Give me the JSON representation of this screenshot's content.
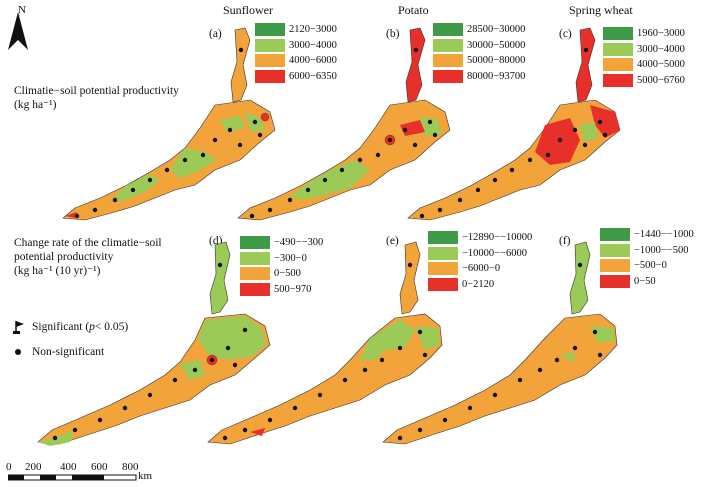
{
  "colors": {
    "dark_green": "#3f9a48",
    "light_green": "#9bca57",
    "orange": "#f2a33a",
    "red": "#e8302a"
  },
  "north_label": "N",
  "crops": [
    "Sunflower",
    "Potato",
    "Spring wheat"
  ],
  "rows": [
    {
      "title": [
        "Climatie−soil potential productivity",
        "(kg ha⁻¹)"
      ],
      "panels": [
        {
          "label": "(a)",
          "legend": [
            "2120−3000",
            "3000−4000",
            "4000−6000",
            "6000−6350"
          ]
        },
        {
          "label": "(b)",
          "legend": [
            "28500−30000",
            "30000−50000",
            "50000−80000",
            "80000−93700"
          ]
        },
        {
          "label": "(c)",
          "legend": [
            "1960−3000",
            "3000−4000",
            "4000−5000",
            "5000−6760"
          ]
        }
      ]
    },
    {
      "title": [
        "Change rate of the climatie−soil",
        "potential productivity",
        "(kg ha⁻¹ (10 yr)⁻¹)"
      ],
      "panels": [
        {
          "label": "(d)",
          "legend": [
            "−490−−300",
            "−300−0",
            "0−500",
            "500−970"
          ]
        },
        {
          "label": "(e)",
          "legend": [
            "−12890−−10000",
            "−10000−−6000",
            "−6000−0",
            "0−2120"
          ]
        },
        {
          "label": "(f)",
          "legend": [
            "−1440−−1000",
            "−1000−−500",
            "−500−0",
            "0−50"
          ]
        }
      ]
    }
  ],
  "key": {
    "significant_text": "Significant (",
    "significant_p": "p",
    "significant_rest": " < 0.05)",
    "nonsignificant": "Non-significant"
  },
  "scale": {
    "ticks": [
      "0",
      "200",
      "400",
      "600",
      "800"
    ],
    "unit": "km"
  }
}
